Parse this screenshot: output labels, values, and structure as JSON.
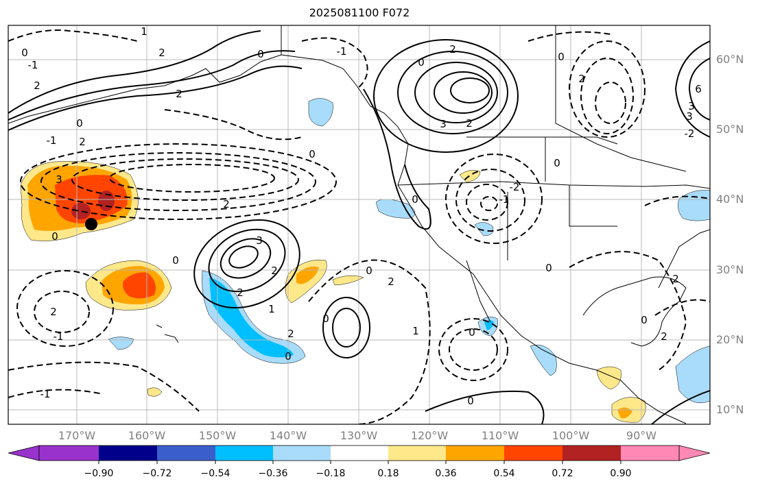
{
  "title": "2025081100 F072",
  "lat_labels": [
    "60°N",
    "50°N",
    "40°N",
    "30°N",
    "20°N",
    "10°N"
  ],
  "lon_labels": [
    "170°W",
    "160°W",
    "150°W",
    "140°W",
    "130°W",
    "120°W",
    "110°W",
    "100°W",
    "90°W"
  ],
  "colorbar": {
    "colors": [
      "#9932cc",
      "#00008b",
      "#3a5fcd",
      "#00bfff",
      "#a8dcfa",
      "#ffffff",
      "#ffe88a",
      "#ffa500",
      "#ff4500",
      "#b22222",
      "#ff88b4"
    ],
    "tick_labels": [
      "−0.90",
      "−0.72",
      "−0.54",
      "−0.36",
      "−0.18",
      "0.18",
      "0.36",
      "0.54",
      "0.72",
      "0.90"
    ]
  },
  "contour_labels": [
    "0",
    "2",
    "2",
    "2",
    "0",
    "0",
    "-1",
    "0",
    "-1",
    "2",
    "2",
    "1",
    "-1",
    "0",
    "2",
    "3",
    "3",
    "2",
    "0",
    "2",
    "0",
    "2",
    "0",
    "0",
    "1",
    "2",
    "-1",
    "0",
    "-2",
    "0",
    "0",
    "0",
    "-1",
    "0",
    "2",
    "3",
    "2",
    "1",
    "2",
    "0",
    "2",
    "0",
    "2",
    "-1",
    "3",
    "-2",
    "6",
    "3",
    "0"
  ]
}
